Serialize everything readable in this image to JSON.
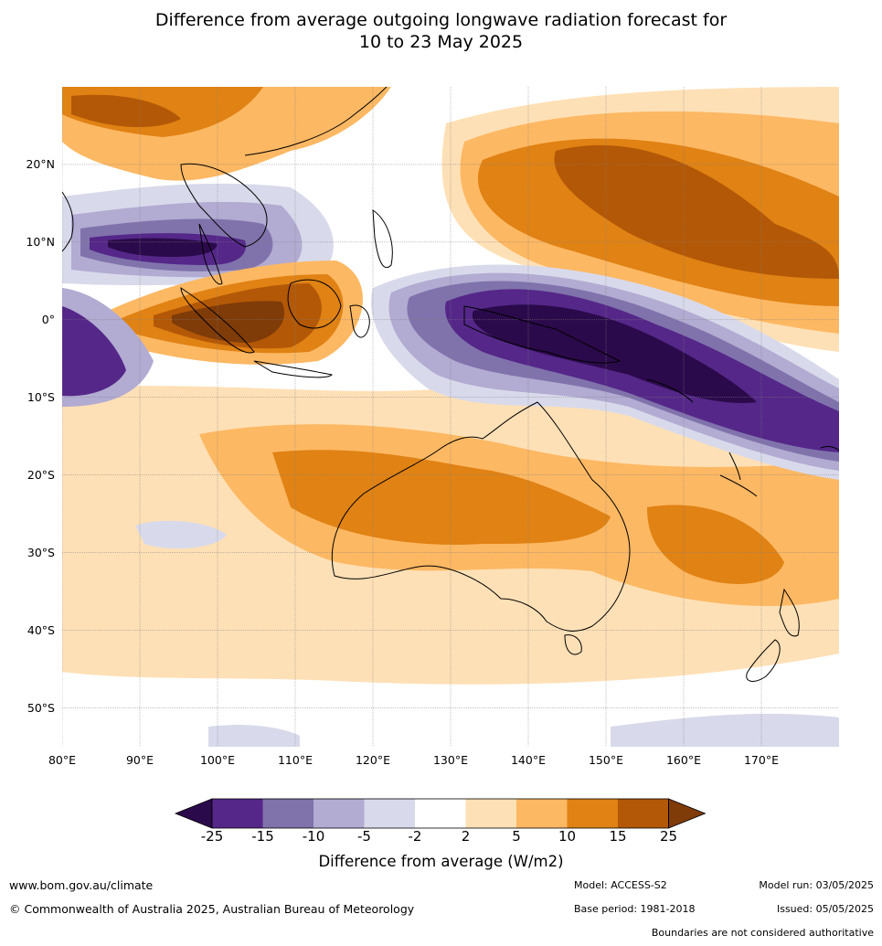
{
  "title_line1": "Difference from average outgoing longwave radiation forecast for",
  "title_line2": "10 to 23 May 2025",
  "lat_labels": [
    "20°N",
    "10°N",
    "0°",
    "10°S",
    "20°S",
    "30°S",
    "40°S",
    "50°S"
  ],
  "lat_values": [
    20,
    10,
    0,
    -10,
    -20,
    -30,
    -40,
    -50
  ],
  "lon_labels": [
    "80°E",
    "90°E",
    "100°E",
    "110°E",
    "120°E",
    "130°E",
    "140°E",
    "150°E",
    "160°E",
    "170°E"
  ],
  "lon_values": [
    80,
    90,
    100,
    110,
    120,
    130,
    140,
    150,
    160,
    170
  ],
  "map_extent": {
    "lon": [
      80,
      180
    ],
    "lat": [
      -55,
      30
    ]
  },
  "legend": {
    "ticks": [
      "-25",
      "-15",
      "-10",
      "-5",
      "-2",
      "2",
      "5",
      "10",
      "15",
      "25"
    ],
    "colors": [
      "#2b0a4b",
      "#542788",
      "#8073ac",
      "#b2abd2",
      "#d8daeb",
      "#ffffff",
      "#fee0b6",
      "#fdb863",
      "#e08214",
      "#b35806",
      "#7f3b08"
    ],
    "label": "Difference from average (W/m2)"
  },
  "footer": {
    "url": "www.bom.gov.au/climate",
    "copyright": "© Commonwealth of Australia 2025, Australian Bureau of Meteorology",
    "model": "Model: ACCESS-S2",
    "base_period": "Base period: 1981-2018",
    "model_run": "Model run: 03/05/2025",
    "issued": "Issued: 05/05/2025",
    "disclaimer": "Boundaries are not considered authoritative"
  }
}
